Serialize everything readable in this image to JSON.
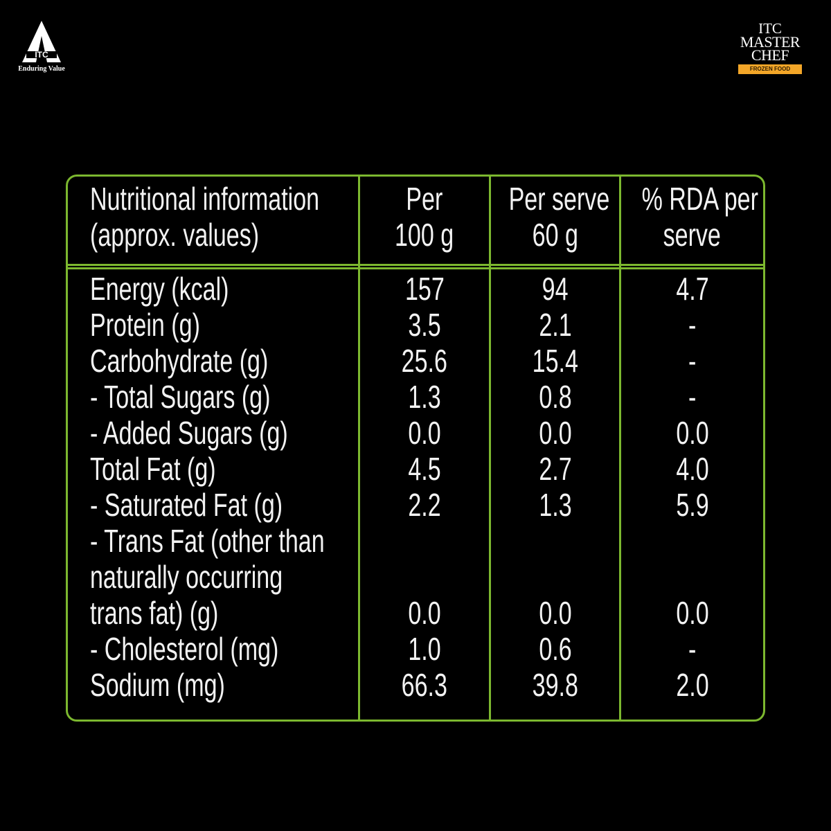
{
  "brand": {
    "left_logo": "ITC",
    "left_tagline": "Enduring Value",
    "right_logo": [
      "ITC",
      "MASTER",
      "CHEF"
    ],
    "right_ribbon": "FROZEN FOOD"
  },
  "colors": {
    "border": "#7cb82f",
    "background": "#000000",
    "text": "#f2f2f2"
  },
  "table": {
    "headers": [
      [
        "Nutritional information",
        "(approx. values)"
      ],
      [
        "Per",
        "100 g"
      ],
      [
        "Per serve",
        "60 g"
      ],
      [
        "% RDA per",
        "serve"
      ]
    ],
    "rows": [
      {
        "label": [
          "Energy (kcal)"
        ],
        "per100": "157",
        "serve": "94",
        "rda": "4.7"
      },
      {
        "label": [
          "Protein (g)"
        ],
        "per100": "3.5",
        "serve": "2.1",
        "rda": "-"
      },
      {
        "label": [
          "Carbohydrate (g)"
        ],
        "per100": "25.6",
        "serve": "15.4",
        "rda": "-"
      },
      {
        "label": [
          "- Total Sugars (g)"
        ],
        "per100": "1.3",
        "serve": "0.8",
        "rda": "-"
      },
      {
        "label": [
          "- Added Sugars (g)"
        ],
        "per100": "0.0",
        "serve": "0.0",
        "rda": "0.0"
      },
      {
        "label": [
          "Total Fat (g)"
        ],
        "per100": "4.5",
        "serve": "2.7",
        "rda": "4.0"
      },
      {
        "label": [
          "- Saturated Fat (g)"
        ],
        "per100": "2.2",
        "serve": "1.3",
        "rda": "5.9"
      },
      {
        "label": [
          "- Trans Fat (other than",
          "naturally occurring",
          "trans fat) (g)"
        ],
        "per100": "0.0",
        "serve": "0.0",
        "rda": "0.0"
      },
      {
        "label": [
          "- Cholesterol (mg)"
        ],
        "per100": "1.0",
        "serve": "0.6",
        "rda": "-"
      },
      {
        "label": [
          "Sodium (mg)"
        ],
        "per100": "66.3",
        "serve": "39.8",
        "rda": "2.0"
      }
    ]
  }
}
